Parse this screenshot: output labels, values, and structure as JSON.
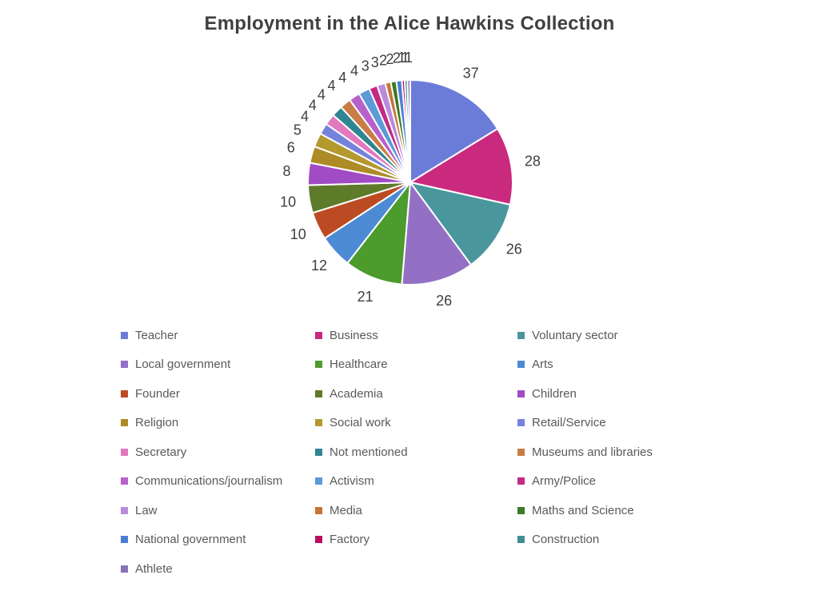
{
  "chart_data": {
    "type": "pie",
    "title": "Employment in the Alice Hawkins Collection",
    "legend_position": "bottom",
    "data_labels": "values, outside end",
    "total": 228,
    "categories": [
      "Teacher",
      "Business",
      "Voluntary sector",
      "Local government",
      "Healthcare",
      "Arts",
      "Founder",
      "Academia",
      "Children",
      "Religion",
      "Social work",
      "Retail/Service",
      "Secretary",
      "Not mentioned",
      "Museums and libraries",
      "Communications/journalism",
      "Activism",
      "Army/Police",
      "Law",
      "Media",
      "Maths and Science",
      "National government",
      "Factory",
      "Construction",
      "Athlete"
    ],
    "values": [
      37,
      28,
      26,
      26,
      21,
      12,
      10,
      10,
      8,
      6,
      5,
      4,
      4,
      4,
      4,
      4,
      4,
      3,
      3,
      2,
      2,
      2,
      1,
      1,
      1
    ],
    "colors": [
      "#6B7CD8",
      "#CA2A7E",
      "#49979D",
      "#9470C5",
      "#4C9B2D",
      "#4D8AD4",
      "#BC4B23",
      "#5E7B2A",
      "#A14CC4",
      "#AD8B26",
      "#B4992F",
      "#7683DC",
      "#E279BE",
      "#2F8591",
      "#C97C45",
      "#B761CC",
      "#5C9AD8",
      "#C22A85",
      "#BA8BDC",
      "#C87435",
      "#3B7A26",
      "#4B7CD6",
      "#BB0D60",
      "#3E8E96",
      "#8873B8"
    ]
  },
  "styles": {
    "background": "#ffffff",
    "title_color": "#404040",
    "data_label_color": "#404040",
    "legend_text_color": "#595959",
    "slice_separator_color": "#ffffff"
  }
}
